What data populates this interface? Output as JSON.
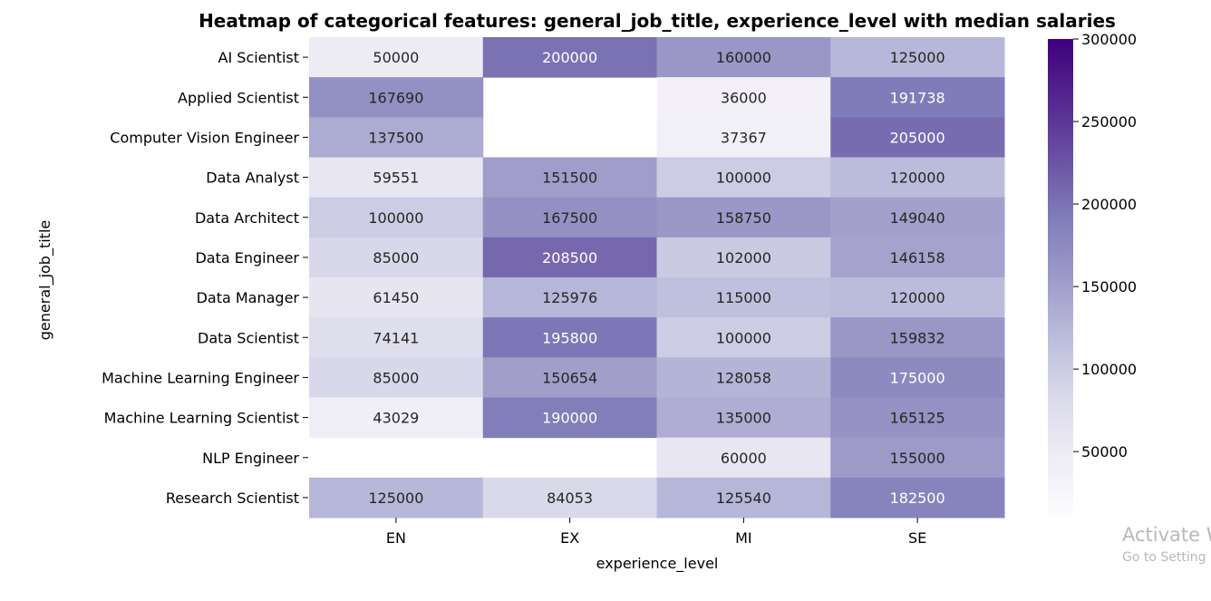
{
  "chart_data": {
    "type": "heatmap",
    "title": "Heatmap of categorical features: general_job_title, experience_level with median salaries",
    "xlabel": "experience_level",
    "ylabel": "general_job_title",
    "x_categories": [
      "EN",
      "EX",
      "MI",
      "SE"
    ],
    "y_categories": [
      "AI Scientist",
      "Applied Scientist",
      "Computer Vision Engineer",
      "Data Analyst",
      "Data Architect",
      "Data Engineer",
      "Data Manager",
      "Data Scientist",
      "Machine Learning Engineer",
      "Machine Learning Scientist",
      "NLP Engineer",
      "Research Scientist"
    ],
    "values": [
      [
        50000,
        200000,
        160000,
        125000
      ],
      [
        167690,
        null,
        36000,
        191738
      ],
      [
        137500,
        null,
        37367,
        205000
      ],
      [
        59551,
        151500,
        100000,
        120000
      ],
      [
        100000,
        167500,
        158750,
        149040
      ],
      [
        85000,
        208500,
        102000,
        146158
      ],
      [
        61450,
        125976,
        115000,
        120000
      ],
      [
        74141,
        195800,
        100000,
        159832
      ],
      [
        85000,
        150654,
        128058,
        175000
      ],
      [
        43029,
        190000,
        135000,
        165125
      ],
      [
        null,
        null,
        60000,
        155000
      ],
      [
        125000,
        84053,
        125540,
        182500
      ]
    ],
    "colorbar": {
      "colormap": "Purples",
      "range": [
        10000,
        300000
      ],
      "ticks": [
        50000,
        100000,
        150000,
        200000,
        250000,
        300000
      ]
    }
  },
  "watermark": {
    "line1": "Activate W",
    "line2": "Go to Setting"
  }
}
